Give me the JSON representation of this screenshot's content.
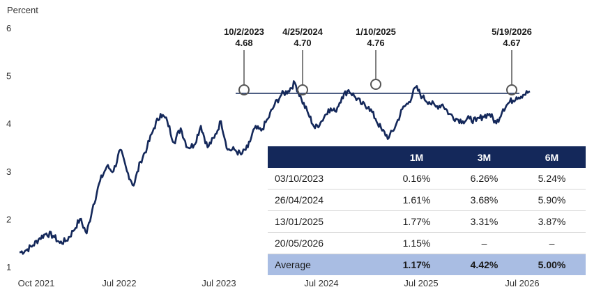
{
  "chart_data": {
    "type": "line",
    "ylabel": "Percent",
    "ylim": [
      1,
      6
    ],
    "y_ticks": [
      1,
      2,
      3,
      4,
      5,
      6
    ],
    "x_ticks": [
      "Oct 2021",
      "Jul 2022",
      "Jul 2023",
      "Jul 2024",
      "Jul 2025",
      "Jul 2026"
    ],
    "grid": false,
    "series": [
      {
        "color": "#14285a",
        "values": [
          1.3,
          1.35,
          1.45,
          1.6,
          1.7,
          1.65,
          1.5,
          1.55,
          1.75,
          2.0,
          1.7,
          2.3,
          2.8,
          3.1,
          3.0,
          3.45,
          3.0,
          2.7,
          3.2,
          3.5,
          3.9,
          4.2,
          4.05,
          3.6,
          3.9,
          3.5,
          3.55,
          3.95,
          3.5,
          3.7,
          4.05,
          3.45,
          3.45,
          3.35,
          3.5,
          3.9,
          3.85,
          4.1,
          4.4,
          4.6,
          4.68,
          4.85,
          4.5,
          4.2,
          3.9,
          4.05,
          4.3,
          4.25,
          4.55,
          4.7,
          4.55,
          4.4,
          4.35,
          4.1,
          3.85,
          3.7,
          3.95,
          4.3,
          4.45,
          4.76,
          4.55,
          4.45,
          4.35,
          4.4,
          4.2,
          4.1,
          4.05,
          4.1,
          4.05,
          4.15,
          4.2,
          4.0,
          4.3,
          4.45,
          4.55,
          4.6,
          4.67
        ]
      }
    ],
    "reference_line": {
      "value": 4.63
    },
    "annotations": [
      {
        "date": "10/2/2023",
        "value": "4.68"
      },
      {
        "date": "4/25/2024",
        "value": "4.70"
      },
      {
        "date": "1/10/2025",
        "value": "4.76"
      },
      {
        "date": "5/19/2026",
        "value": "4.67"
      }
    ]
  },
  "table": {
    "headers": [
      "",
      "1M",
      "3M",
      "6M"
    ],
    "rows": [
      [
        "03/10/2023",
        "0.16%",
        "6.26%",
        "5.24%"
      ],
      [
        "26/04/2024",
        "1.61%",
        "3.68%",
        "5.90%"
      ],
      [
        "13/01/2025",
        "1.77%",
        "3.31%",
        "3.87%"
      ],
      [
        "20/05/2026",
        "1.15%",
        "–",
        "–"
      ]
    ],
    "average": [
      "Average",
      "1.17%",
      "4.42%",
      "5.00%"
    ],
    "header_bg": "#14285a",
    "average_bg": "#a9bde3"
  }
}
